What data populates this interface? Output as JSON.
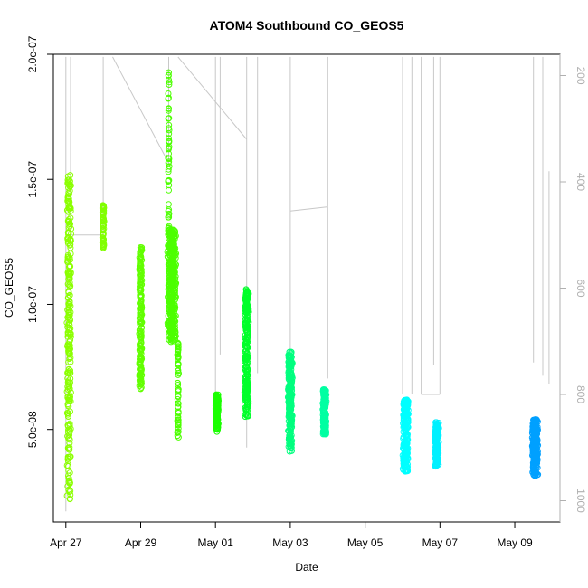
{
  "chart_data": {
    "type": "scatter",
    "title": "ATOM4 Southbound CO_GEOS5",
    "xlabel": "Date",
    "ylabel": "CO_GEOS5",
    "x_ticks": [
      {
        "date": "2018-04-27",
        "label": "Apr 27"
      },
      {
        "date": "2018-04-29",
        "label": "Apr 29"
      },
      {
        "date": "2018-05-01",
        "label": "May 01"
      },
      {
        "date": "2018-05-03",
        "label": "May 03"
      },
      {
        "date": "2018-05-05",
        "label": "May 05"
      },
      {
        "date": "2018-05-07",
        "label": "May 07"
      },
      {
        "date": "2018-05-09",
        "label": "May 09"
      }
    ],
    "xlim": [
      "2018-04-26T16:00",
      "2018-05-10T05:00"
    ],
    "ylim": [
      1.3e-08,
      2e-07
    ],
    "y_ticks": [
      {
        "value": 5e-08,
        "label": "5.0e-08"
      },
      {
        "value": 1e-07,
        "label": "1.0e-07"
      },
      {
        "value": 1.5e-07,
        "label": "1.5e-07"
      },
      {
        "value": 2e-07,
        "label": "2.0e-07"
      }
    ],
    "y2_axis": {
      "inverted": true,
      "range": [
        160,
        1040
      ],
      "ticks": [
        {
          "value": 200,
          "label": "200"
        },
        {
          "value": 400,
          "label": "400"
        },
        {
          "value": 600,
          "label": "600"
        },
        {
          "value": 800,
          "label": "800"
        },
        {
          "value": 1000,
          "label": "1000"
        }
      ],
      "color": "#b0b0b0"
    },
    "grid": false,
    "clusters": [
      {
        "center": "2018-04-27T02:00",
        "width_h": 3.0,
        "y_min": 2.1e-08,
        "y_max": 1.52e-07,
        "color": "#8bff00",
        "points": 260
      },
      {
        "center": "2018-04-28T00:00",
        "width_h": 1.2,
        "y_min": 1.22e-07,
        "y_max": 1.4e-07,
        "color": "#80ff00",
        "points": 60
      },
      {
        "center": "2018-04-29T00:00",
        "width_h": 2.0,
        "y_min": 6.6e-08,
        "y_max": 1.23e-07,
        "color": "#62ff00",
        "points": 200
      },
      {
        "center": "2018-04-29T20:00",
        "width_h": 6.0,
        "y_min": 8.5e-08,
        "y_max": 1.3e-07,
        "color": "#4cff00",
        "points": 420
      },
      {
        "center": "2018-04-29T18:00",
        "width_h": 1.0,
        "y_min": 1.3e-07,
        "y_max": 1.93e-07,
        "color": "#4cff00",
        "points": 50
      },
      {
        "center": "2018-04-30T00:00",
        "width_h": 1.0,
        "y_min": 4.6e-08,
        "y_max": 8.5e-08,
        "color": "#4cff00",
        "points": 60
      },
      {
        "center": "2018-05-01T01:00",
        "width_h": 2.2,
        "y_min": 4.9e-08,
        "y_max": 6.4e-08,
        "color": "#1aff00",
        "points": 120
      },
      {
        "center": "2018-05-01T20:00",
        "width_h": 3.0,
        "y_min": 5.5e-08,
        "y_max": 1.06e-07,
        "color": "#00ff2a",
        "points": 240
      },
      {
        "center": "2018-05-03T00:00",
        "width_h": 3.0,
        "y_min": 4.1e-08,
        "y_max": 8.1e-08,
        "color": "#00ff7f",
        "points": 260
      },
      {
        "center": "2018-05-03T22:00",
        "width_h": 2.5,
        "y_min": 4.8e-08,
        "y_max": 6.6e-08,
        "color": "#00ffa2",
        "points": 180
      },
      {
        "center": "2018-05-06T02:00",
        "width_h": 4.0,
        "y_min": 3.3e-08,
        "y_max": 6.2e-08,
        "color": "#00ffff",
        "points": 260
      },
      {
        "center": "2018-05-06T22:00",
        "width_h": 3.0,
        "y_min": 3.5e-08,
        "y_max": 5.3e-08,
        "color": "#00f0ff",
        "points": 200
      },
      {
        "center": "2018-05-09T13:00",
        "width_h": 4.0,
        "y_min": 3.1e-08,
        "y_max": 5.4e-08,
        "color": "#00a0ff",
        "points": 300
      }
    ],
    "pressure_trace": {
      "color": "#c8c8c8",
      "segments": [
        [
          [
            "2018-04-27T00:00",
            1020
          ],
          [
            "2018-04-27T00:00",
            165
          ]
        ],
        [
          [
            "2018-04-27T03:00",
            500
          ],
          [
            "2018-04-27T03:00",
            165
          ]
        ],
        [
          [
            "2018-04-27T03:00",
            500
          ],
          [
            "2018-04-28T00:00",
            500
          ]
        ],
        [
          [
            "2018-04-28T00:00",
            500
          ],
          [
            "2018-04-28T00:00",
            165
          ]
        ],
        [
          [
            "2018-04-28T06:00",
            165
          ],
          [
            "2018-04-29T18:00",
            365
          ]
        ],
        [
          [
            "2018-04-29T18:00",
            365
          ],
          [
            "2018-04-29T18:00",
            165
          ]
        ],
        [
          [
            "2018-04-30T00:00",
            165
          ],
          [
            "2018-04-30T00:00",
            165
          ]
        ],
        [
          [
            "2018-04-30T00:00",
            165
          ],
          [
            "2018-05-01T20:00",
            320
          ]
        ],
        [
          [
            "2018-05-01T00:00",
            815
          ],
          [
            "2018-05-01T00:00",
            165
          ]
        ],
        [
          [
            "2018-05-01T03:00",
            725
          ],
          [
            "2018-05-01T03:00",
            165
          ]
        ],
        [
          [
            "2018-05-01T20:00",
            320
          ],
          [
            "2018-05-01T20:00",
            165
          ]
        ],
        [
          [
            "2018-05-01T20:00",
            900
          ],
          [
            "2018-05-01T20:00",
            320
          ]
        ],
        [
          [
            "2018-05-02T03:00",
            760
          ],
          [
            "2018-05-02T03:00",
            165
          ]
        ],
        [
          [
            "2018-05-03T00:00",
            455
          ],
          [
            "2018-05-04T00:00",
            447
          ]
        ],
        [
          [
            "2018-05-03T00:00",
            800
          ],
          [
            "2018-05-03T00:00",
            165
          ]
        ],
        [
          [
            "2018-05-04T00:00",
            447
          ],
          [
            "2018-05-04T00:00",
            165
          ]
        ],
        [
          [
            "2018-05-04T00:00",
            770
          ],
          [
            "2018-05-04T00:00",
            447
          ]
        ],
        [
          [
            "2018-05-06T00:00",
            800
          ],
          [
            "2018-05-06T00:00",
            165
          ]
        ],
        [
          [
            "2018-05-06T06:00",
            800
          ],
          [
            "2018-05-06T06:00",
            165
          ]
        ],
        [
          [
            "2018-05-06T12:00",
            800
          ],
          [
            "2018-05-06T12:00",
            165
          ]
        ],
        [
          [
            "2018-05-06T12:00",
            800
          ],
          [
            "2018-05-07T00:00",
            800
          ]
        ],
        [
          [
            "2018-05-06T20:00",
            745
          ],
          [
            "2018-05-06T20:00",
            165
          ]
        ],
        [
          [
            "2018-05-07T00:00",
            800
          ],
          [
            "2018-05-07T00:00",
            165
          ]
        ],
        [
          [
            "2018-05-09T12:00",
            740
          ],
          [
            "2018-05-09T12:00",
            165
          ]
        ],
        [
          [
            "2018-05-09T18:00",
            765
          ],
          [
            "2018-05-09T18:00",
            165
          ]
        ],
        [
          [
            "2018-05-09T22:00",
            780
          ],
          [
            "2018-05-09T22:00",
            380
          ]
        ]
      ]
    }
  }
}
